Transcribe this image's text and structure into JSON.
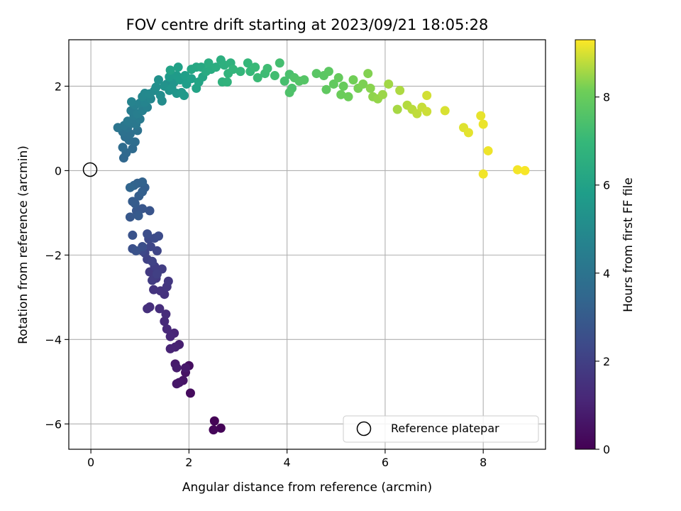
{
  "chart_data": {
    "type": "scatter",
    "title": "FOV centre drift starting at 2023/09/21 18:05:28",
    "xlabel": "Angular distance from reference (arcmin)",
    "ylabel": "Rotation from reference (arcmin)",
    "xlim": [
      -0.45,
      9.27
    ],
    "ylim": [
      -6.6,
      3.1
    ],
    "xticks": [
      0,
      2,
      4,
      6,
      8
    ],
    "yticks": [
      -6,
      -4,
      -2,
      0,
      2
    ],
    "grid": true,
    "colormap": "viridis",
    "colorbar": {
      "label": "Hours from first FF file",
      "range": [
        0,
        9.3
      ],
      "ticks": [
        0,
        2,
        4,
        6,
        8
      ]
    },
    "reference_point": {
      "x": 0,
      "y": 0,
      "legend_label": "Reference platepar"
    },
    "legend": {
      "entries": [
        "Reference platepar"
      ],
      "placement": "lower-right"
    },
    "series": [
      {
        "values": [
          {
            "x": 2.52,
            "y": -5.93,
            "t": 0.05
          },
          {
            "x": 2.65,
            "y": -6.1,
            "t": 0.1
          },
          {
            "x": 2.5,
            "y": -6.14,
            "t": 0.15
          },
          {
            "x": 2.03,
            "y": -5.27,
            "t": 0.3
          },
          {
            "x": 2.0,
            "y": -4.62,
            "t": 0.4
          },
          {
            "x": 1.93,
            "y": -4.78,
            "t": 0.5
          },
          {
            "x": 1.88,
            "y": -4.97,
            "t": 0.55
          },
          {
            "x": 1.8,
            "y": -5.02,
            "t": 0.6
          },
          {
            "x": 1.75,
            "y": -5.05,
            "t": 0.65
          },
          {
            "x": 1.93,
            "y": -4.67,
            "t": 0.7
          },
          {
            "x": 1.72,
            "y": -4.58,
            "t": 0.75
          },
          {
            "x": 1.75,
            "y": -4.67,
            "t": 0.8
          },
          {
            "x": 1.8,
            "y": -4.12,
            "t": 0.9
          },
          {
            "x": 1.72,
            "y": -4.18,
            "t": 1.0
          },
          {
            "x": 1.62,
            "y": -4.22,
            "t": 1.05
          },
          {
            "x": 1.7,
            "y": -3.85,
            "t": 1.1
          },
          {
            "x": 1.62,
            "y": -3.93,
            "t": 1.15
          },
          {
            "x": 1.55,
            "y": -3.75,
            "t": 1.2
          },
          {
            "x": 1.5,
            "y": -3.57,
            "t": 1.25
          },
          {
            "x": 1.53,
            "y": -3.4,
            "t": 1.3
          },
          {
            "x": 1.4,
            "y": -3.27,
            "t": 1.35
          },
          {
            "x": 1.2,
            "y": -3.23,
            "t": 1.4
          },
          {
            "x": 1.15,
            "y": -3.27,
            "t": 1.45
          },
          {
            "x": 1.5,
            "y": -2.93,
            "t": 1.5
          },
          {
            "x": 1.42,
            "y": -2.85,
            "t": 1.55
          },
          {
            "x": 1.28,
            "y": -2.82,
            "t": 1.6
          },
          {
            "x": 1.55,
            "y": -2.75,
            "t": 1.65
          },
          {
            "x": 1.58,
            "y": -2.62,
            "t": 1.7
          },
          {
            "x": 1.33,
            "y": -2.55,
            "t": 1.75
          },
          {
            "x": 1.2,
            "y": -2.4,
            "t": 1.8
          },
          {
            "x": 1.25,
            "y": -2.6,
            "t": 1.85
          },
          {
            "x": 1.45,
            "y": -2.33,
            "t": 1.9
          },
          {
            "x": 1.3,
            "y": -2.27,
            "t": 1.95
          },
          {
            "x": 1.35,
            "y": -2.45,
            "t": 2.0
          },
          {
            "x": 1.15,
            "y": -2.1,
            "t": 2.05
          },
          {
            "x": 1.25,
            "y": -2.15,
            "t": 2.1
          },
          {
            "x": 1.1,
            "y": -1.95,
            "t": 2.15
          },
          {
            "x": 1.35,
            "y": -1.9,
            "t": 2.2
          },
          {
            "x": 1.22,
            "y": -1.8,
            "t": 2.25
          },
          {
            "x": 1.05,
            "y": -1.9,
            "t": 2.3
          },
          {
            "x": 1.18,
            "y": -1.62,
            "t": 2.35
          },
          {
            "x": 1.3,
            "y": -1.6,
            "t": 2.4
          },
          {
            "x": 1.38,
            "y": -1.55,
            "t": 2.45
          },
          {
            "x": 1.15,
            "y": -1.5,
            "t": 2.5
          },
          {
            "x": 1.05,
            "y": -1.8,
            "t": 2.55
          },
          {
            "x": 0.85,
            "y": -1.85,
            "t": 2.6
          },
          {
            "x": 0.92,
            "y": -1.9,
            "t": 2.65
          },
          {
            "x": 0.85,
            "y": -1.53,
            "t": 2.7
          },
          {
            "x": 1.2,
            "y": -0.95,
            "t": 2.75
          },
          {
            "x": 1.05,
            "y": -0.9,
            "t": 2.8
          },
          {
            "x": 0.93,
            "y": -0.95,
            "t": 2.85
          },
          {
            "x": 0.8,
            "y": -1.1,
            "t": 2.9
          },
          {
            "x": 0.97,
            "y": -1.07,
            "t": 2.95
          },
          {
            "x": 0.9,
            "y": -0.78,
            "t": 3.0
          },
          {
            "x": 0.85,
            "y": -0.73,
            "t": 3.05
          },
          {
            "x": 0.98,
            "y": -0.6,
            "t": 3.1
          },
          {
            "x": 1.1,
            "y": -0.4,
            "t": 3.15
          },
          {
            "x": 1.05,
            "y": -0.5,
            "t": 3.2
          },
          {
            "x": 0.95,
            "y": -0.3,
            "t": 3.25
          },
          {
            "x": 1.05,
            "y": -0.27,
            "t": 3.3
          },
          {
            "x": 0.88,
            "y": -0.35,
            "t": 3.35
          },
          {
            "x": 0.8,
            "y": -0.4,
            "t": 3.4
          },
          {
            "x": 0.67,
            "y": 0.3,
            "t": 3.5
          },
          {
            "x": 0.72,
            "y": 0.42,
            "t": 3.55
          },
          {
            "x": 0.85,
            "y": 0.52,
            "t": 3.6
          },
          {
            "x": 0.65,
            "y": 0.55,
            "t": 3.65
          },
          {
            "x": 0.9,
            "y": 0.68,
            "t": 3.7
          },
          {
            "x": 0.78,
            "y": 0.72,
            "t": 3.75
          },
          {
            "x": 0.7,
            "y": 0.8,
            "t": 3.8
          },
          {
            "x": 0.8,
            "y": 0.87,
            "t": 3.85
          },
          {
            "x": 0.65,
            "y": 0.92,
            "t": 3.9
          },
          {
            "x": 0.95,
            "y": 0.95,
            "t": 3.95
          },
          {
            "x": 0.75,
            "y": 1.02,
            "t": 4.0
          },
          {
            "x": 0.55,
            "y": 1.02,
            "t": 4.05
          },
          {
            "x": 0.68,
            "y": 1.07,
            "t": 4.1
          },
          {
            "x": 0.82,
            "y": 1.12,
            "t": 4.15
          },
          {
            "x": 0.92,
            "y": 1.1,
            "t": 4.2
          },
          {
            "x": 0.75,
            "y": 1.17,
            "t": 4.25
          },
          {
            "x": 1.0,
            "y": 1.22,
            "t": 4.3
          },
          {
            "x": 0.88,
            "y": 1.3,
            "t": 4.35
          },
          {
            "x": 0.82,
            "y": 1.42,
            "t": 4.4
          },
          {
            "x": 0.95,
            "y": 1.35,
            "t": 4.45
          },
          {
            "x": 1.05,
            "y": 1.42,
            "t": 4.5
          },
          {
            "x": 0.9,
            "y": 1.55,
            "t": 4.55
          },
          {
            "x": 1.15,
            "y": 1.5,
            "t": 4.6
          },
          {
            "x": 1.0,
            "y": 1.6,
            "t": 4.65
          },
          {
            "x": 0.83,
            "y": 1.63,
            "t": 4.7
          },
          {
            "x": 1.1,
            "y": 1.62,
            "t": 4.75
          },
          {
            "x": 1.22,
            "y": 1.7,
            "t": 4.8
          },
          {
            "x": 1.05,
            "y": 1.75,
            "t": 4.85
          },
          {
            "x": 1.1,
            "y": 1.83,
            "t": 4.9
          },
          {
            "x": 1.2,
            "y": 1.82,
            "t": 4.95
          },
          {
            "x": 1.3,
            "y": 1.9,
            "t": 5.0
          },
          {
            "x": 1.45,
            "y": 1.65,
            "t": 5.05
          },
          {
            "x": 1.42,
            "y": 1.78,
            "t": 5.1
          },
          {
            "x": 1.33,
            "y": 1.98,
            "t": 5.15
          },
          {
            "x": 1.55,
            "y": 2.05,
            "t": 5.2
          },
          {
            "x": 1.38,
            "y": 2.15,
            "t": 5.25
          },
          {
            "x": 1.5,
            "y": 2.0,
            "t": 5.3
          },
          {
            "x": 1.6,
            "y": 1.9,
            "t": 5.35
          },
          {
            "x": 1.7,
            "y": 2.1,
            "t": 5.4
          },
          {
            "x": 1.65,
            "y": 1.95,
            "t": 5.45
          },
          {
            "x": 1.75,
            "y": 1.83,
            "t": 5.5
          },
          {
            "x": 1.85,
            "y": 1.85,
            "t": 5.55
          },
          {
            "x": 1.9,
            "y": 1.78,
            "t": 5.6
          },
          {
            "x": 1.6,
            "y": 2.22,
            "t": 5.65
          },
          {
            "x": 1.75,
            "y": 2.25,
            "t": 5.7
          },
          {
            "x": 1.82,
            "y": 2.15,
            "t": 5.75
          },
          {
            "x": 1.95,
            "y": 2.05,
            "t": 5.8
          },
          {
            "x": 1.92,
            "y": 2.25,
            "t": 5.85
          },
          {
            "x": 2.05,
            "y": 2.18,
            "t": 5.9
          },
          {
            "x": 1.78,
            "y": 2.45,
            "t": 5.95
          },
          {
            "x": 1.62,
            "y": 2.38,
            "t": 6.0
          },
          {
            "x": 2.15,
            "y": 1.95,
            "t": 6.05
          },
          {
            "x": 2.2,
            "y": 2.1,
            "t": 6.1
          },
          {
            "x": 2.28,
            "y": 2.22,
            "t": 6.15
          },
          {
            "x": 2.05,
            "y": 2.4,
            "t": 6.2
          },
          {
            "x": 2.15,
            "y": 2.45,
            "t": 6.25
          },
          {
            "x": 2.25,
            "y": 2.45,
            "t": 6.3
          },
          {
            "x": 2.35,
            "y": 2.35,
            "t": 6.35
          },
          {
            "x": 2.45,
            "y": 2.4,
            "t": 6.4
          },
          {
            "x": 2.4,
            "y": 2.55,
            "t": 6.45
          },
          {
            "x": 2.55,
            "y": 2.45,
            "t": 6.5
          },
          {
            "x": 2.65,
            "y": 2.62,
            "t": 6.55
          },
          {
            "x": 2.72,
            "y": 2.5,
            "t": 6.6
          },
          {
            "x": 2.85,
            "y": 2.55,
            "t": 6.65
          },
          {
            "x": 2.68,
            "y": 2.1,
            "t": 6.7
          },
          {
            "x": 2.78,
            "y": 2.1,
            "t": 6.75
          },
          {
            "x": 2.8,
            "y": 2.3,
            "t": 6.8
          },
          {
            "x": 2.9,
            "y": 2.4,
            "t": 6.85
          },
          {
            "x": 3.05,
            "y": 2.35,
            "t": 6.9
          },
          {
            "x": 3.2,
            "y": 2.55,
            "t": 6.95
          },
          {
            "x": 3.25,
            "y": 2.35,
            "t": 7.0
          },
          {
            "x": 3.35,
            "y": 2.45,
            "t": 7.05
          },
          {
            "x": 3.4,
            "y": 2.2,
            "t": 7.1
          },
          {
            "x": 3.55,
            "y": 2.3,
            "t": 7.15
          },
          {
            "x": 3.6,
            "y": 2.42,
            "t": 7.2
          },
          {
            "x": 3.75,
            "y": 2.25,
            "t": 7.25
          },
          {
            "x": 3.85,
            "y": 2.55,
            "t": 7.3
          },
          {
            "x": 3.95,
            "y": 2.12,
            "t": 7.35
          },
          {
            "x": 4.05,
            "y": 2.28,
            "t": 7.4
          },
          {
            "x": 4.1,
            "y": 1.95,
            "t": 7.45
          },
          {
            "x": 4.05,
            "y": 1.85,
            "t": 7.5
          },
          {
            "x": 4.15,
            "y": 2.2,
            "t": 7.55
          },
          {
            "x": 4.25,
            "y": 2.12,
            "t": 7.6
          },
          {
            "x": 4.35,
            "y": 2.15,
            "t": 7.65
          },
          {
            "x": 4.6,
            "y": 2.3,
            "t": 7.7
          },
          {
            "x": 4.75,
            "y": 2.25,
            "t": 7.75
          },
          {
            "x": 4.85,
            "y": 2.35,
            "t": 7.8
          },
          {
            "x": 4.8,
            "y": 1.92,
            "t": 7.85
          },
          {
            "x": 4.95,
            "y": 2.05,
            "t": 7.9
          },
          {
            "x": 5.05,
            "y": 2.2,
            "t": 7.95
          },
          {
            "x": 5.15,
            "y": 2.0,
            "t": 8.0
          },
          {
            "x": 5.1,
            "y": 1.8,
            "t": 8.05
          },
          {
            "x": 5.25,
            "y": 1.75,
            "t": 8.1
          },
          {
            "x": 5.35,
            "y": 2.15,
            "t": 8.15
          },
          {
            "x": 5.45,
            "y": 1.95,
            "t": 8.2
          },
          {
            "x": 5.55,
            "y": 2.05,
            "t": 8.25
          },
          {
            "x": 5.65,
            "y": 2.3,
            "t": 8.3
          },
          {
            "x": 5.7,
            "y": 1.95,
            "t": 8.35
          },
          {
            "x": 5.75,
            "y": 1.75,
            "t": 8.4
          },
          {
            "x": 5.85,
            "y": 1.7,
            "t": 8.45
          },
          {
            "x": 5.95,
            "y": 1.8,
            "t": 8.5
          },
          {
            "x": 6.07,
            "y": 2.05,
            "t": 8.55
          },
          {
            "x": 6.25,
            "y": 1.45,
            "t": 8.6
          },
          {
            "x": 6.3,
            "y": 1.9,
            "t": 8.65
          },
          {
            "x": 6.45,
            "y": 1.55,
            "t": 8.7
          },
          {
            "x": 6.55,
            "y": 1.45,
            "t": 8.75
          },
          {
            "x": 6.65,
            "y": 1.35,
            "t": 8.8
          },
          {
            "x": 6.75,
            "y": 1.5,
            "t": 8.85
          },
          {
            "x": 6.85,
            "y": 1.4,
            "t": 8.9
          },
          {
            "x": 6.85,
            "y": 1.78,
            "t": 8.95
          },
          {
            "x": 7.22,
            "y": 1.42,
            "t": 9.0
          },
          {
            "x": 7.6,
            "y": 1.02,
            "t": 9.05
          },
          {
            "x": 7.7,
            "y": 0.9,
            "t": 9.1
          },
          {
            "x": 7.95,
            "y": 1.3,
            "t": 9.12
          },
          {
            "x": 8.0,
            "y": 1.1,
            "t": 9.15
          },
          {
            "x": 8.1,
            "y": 0.47,
            "t": 9.18
          },
          {
            "x": 8.0,
            "y": -0.08,
            "t": 9.2
          },
          {
            "x": 8.7,
            "y": 0.02,
            "t": 9.22
          },
          {
            "x": 8.85,
            "y": 0.0,
            "t": 9.25
          }
        ]
      }
    ]
  }
}
